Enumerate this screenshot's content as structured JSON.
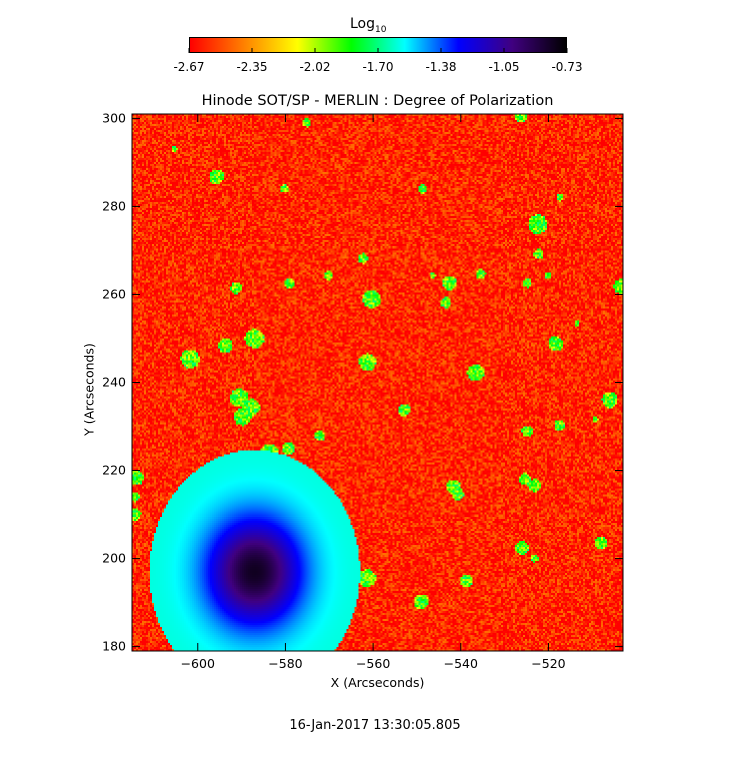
{
  "chart_data": {
    "type": "heatmap",
    "title": "Hinode SOT/SP - MERLIN : Degree of Polarization",
    "xlabel": "X (Arcseconds)",
    "ylabel": "Y (Arcseconds)",
    "xlim": [
      -615,
      -503
    ],
    "ylim": [
      179,
      301
    ],
    "xticks": [
      -600,
      -580,
      -560,
      -540,
      -520
    ],
    "yticks": [
      180,
      200,
      220,
      240,
      260,
      280,
      300
    ],
    "colorbar": {
      "label": "Log",
      "label_subscript": "10",
      "ticks": [
        "-2.67",
        "-2.35",
        "-2.02",
        "-1.70",
        "-1.38",
        "-1.05",
        "-0.73"
      ],
      "range": [
        -2.67,
        -0.73
      ],
      "colors": [
        "#ff0000",
        "#ff8000",
        "#ffff00",
        "#00ff00",
        "#00ffff",
        "#0000ff",
        "#400080",
        "#000000"
      ]
    },
    "features": [
      {
        "kind": "sunspot",
        "x": -587,
        "y": 197,
        "radius_arcsec": 10,
        "peak_value": -0.8
      },
      {
        "kind": "plage-ring",
        "x": -585,
        "y": 200,
        "radius_arcsec": 24,
        "value": -1.6
      }
    ],
    "background_value": -2.6
  },
  "footer": {
    "timestamp": "16-Jan-2017 13:30:05.805"
  }
}
